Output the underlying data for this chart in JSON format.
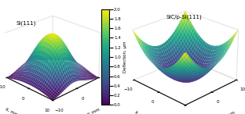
{
  "title_left": "Si(111)",
  "title_right": "SiC/p-Si(111)",
  "colorbar_label": "Deflection, μm",
  "xlabel": "X, mm",
  "ylabel": "Y, mm",
  "axis_ticks": [
    -10,
    0,
    10
  ],
  "colorbar_ticks": [
    0,
    0.2,
    0.4,
    0.6,
    0.8,
    1.0,
    1.2,
    1.4,
    1.6,
    1.8,
    2.0
  ],
  "zlim": [
    0,
    2.0
  ],
  "cmap": "viridis",
  "background_color": "#ffffff"
}
